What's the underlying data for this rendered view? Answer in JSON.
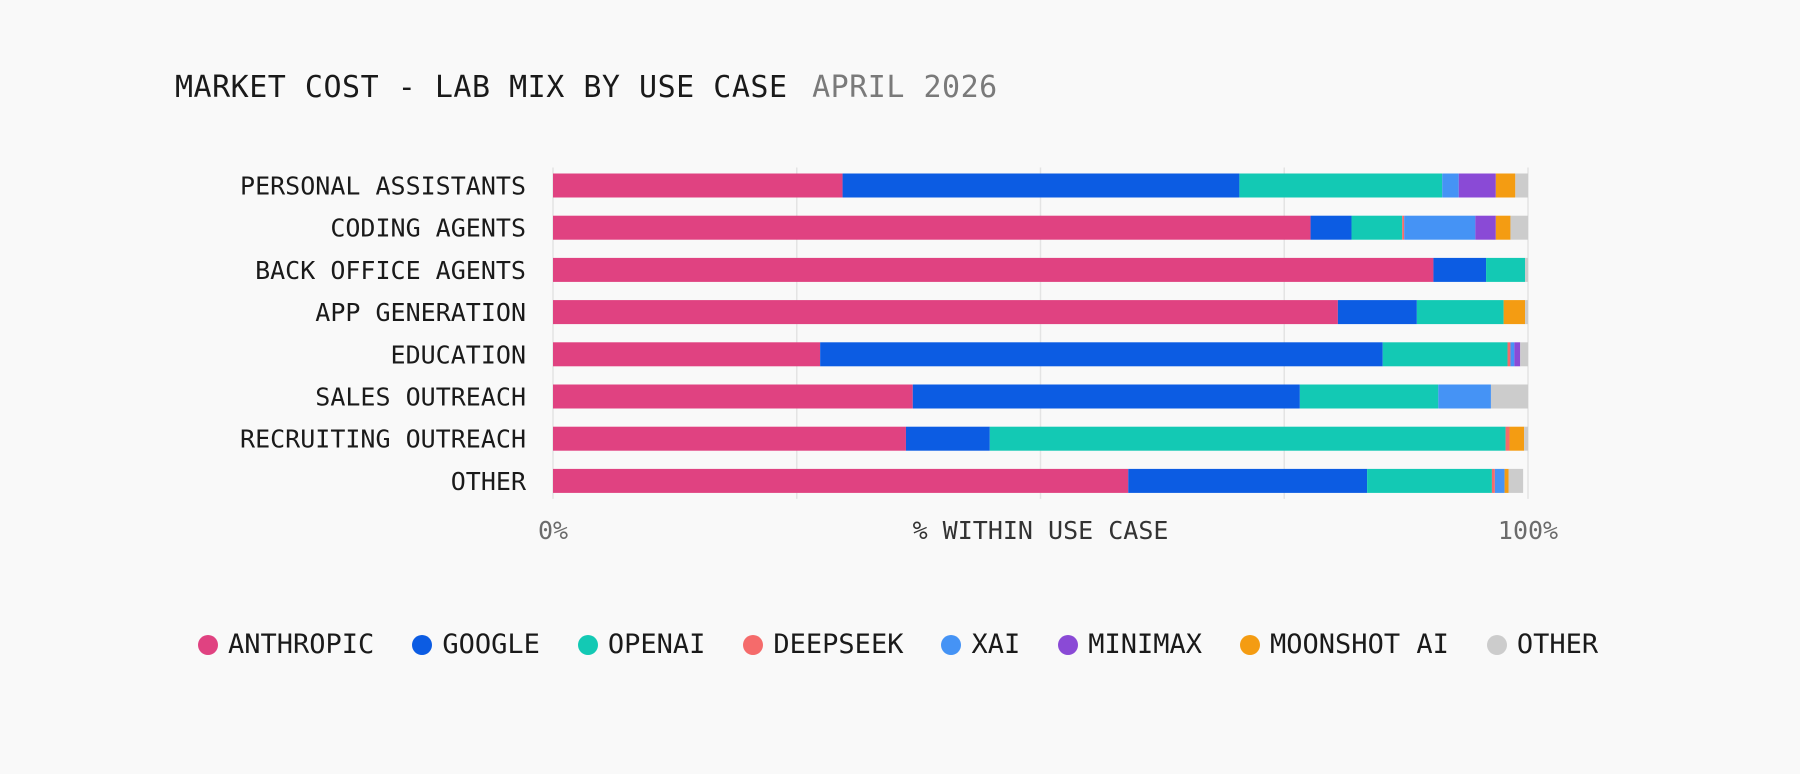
{
  "chart": {
    "title": "MARKET COST - LAB MIX BY USE CASE",
    "subtitle": "APRIL 2026"
  },
  "colors": {
    "ANTHROPIC": "#e04281",
    "GOOGLE": "#0c5ce3",
    "OPENAI": "#13c9b4",
    "DEEPSEEK": "#f56b6b",
    "XAI": "#4593f5",
    "MINIMAX": "#8a4ad6",
    "MOONSHOT AI": "#f49c12",
    "OTHER": "#cccccc"
  },
  "chart_data": {
    "type": "bar",
    "orientation": "horizontal",
    "stacked": true,
    "title": "MARKET COST - LAB MIX BY USE CASE",
    "subtitle": "APRIL 2026",
    "xlabel": "% WITHIN USE CASE",
    "ylabel": "",
    "xlim": [
      0,
      100
    ],
    "x_tick_labels": [
      "0%",
      "100%"
    ],
    "grid": true,
    "legend_position": "bottom",
    "categories": [
      "PERSONAL ASSISTANTS",
      "CODING AGENTS",
      "BACK OFFICE AGENTS",
      "APP GENERATION",
      "EDUCATION",
      "SALES OUTREACH",
      "RECRUITING OUTREACH",
      "OTHER"
    ],
    "series": [
      {
        "name": "ANTHROPIC",
        "values": [
          29.7,
          77.7,
          90.3,
          80.5,
          27.4,
          36.9,
          36.2,
          59.0
        ]
      },
      {
        "name": "GOOGLE",
        "values": [
          40.7,
          4.2,
          5.4,
          8.1,
          57.7,
          39.7,
          8.6,
          24.5
        ]
      },
      {
        "name": "OPENAI",
        "values": [
          20.8,
          5.2,
          4.0,
          8.9,
          12.8,
          14.2,
          52.9,
          12.8
        ]
      },
      {
        "name": "DEEPSEEK",
        "values": [
          0.0,
          0.2,
          0.0,
          0.0,
          0.3,
          0.0,
          0.4,
          0.3
        ]
      },
      {
        "name": "XAI",
        "values": [
          1.7,
          7.3,
          0.0,
          0.0,
          0.4,
          5.4,
          0.0,
          1.0
        ]
      },
      {
        "name": "MINIMAX",
        "values": [
          3.8,
          2.1,
          0.0,
          0.0,
          0.6,
          0.0,
          0.0,
          0.0
        ]
      },
      {
        "name": "MOONSHOT AI",
        "values": [
          2.0,
          1.5,
          0.0,
          2.2,
          0.0,
          0.0,
          1.5,
          0.4
        ]
      },
      {
        "name": "OTHER",
        "values": [
          1.3,
          1.8,
          0.3,
          0.3,
          0.8,
          3.8,
          0.4,
          1.5
        ]
      }
    ]
  }
}
